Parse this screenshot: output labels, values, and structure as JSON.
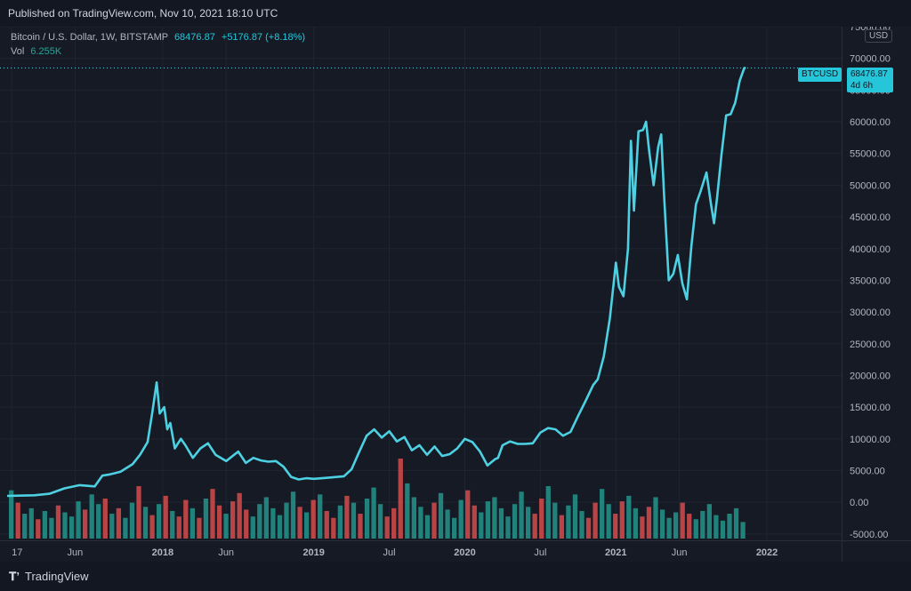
{
  "header": {
    "published": "Published on TradingView.com, Nov 10, 2021 18:10 UTC"
  },
  "legend": {
    "symbol": "Bitcoin / U.S. Dollar, 1W, BITSTAMP",
    "price": "68476.87",
    "change": "+5176.87 (+8.18%)",
    "vol_label": "Vol",
    "vol_value": "6.255K"
  },
  "currency_badge": "USD",
  "last_price_tag": {
    "ticker": "BTCUSD",
    "price": "68476.87",
    "countdown": "4d 6h"
  },
  "footer": {
    "brand": "TradingView"
  },
  "colors": {
    "line": "#4dd0e1",
    "volume_up": "#26a69a",
    "volume_down": "#ef5350",
    "background": "#161a25",
    "grid": "#1f2430"
  },
  "chart_data": {
    "type": "line",
    "title": "Bitcoin / U.S. Dollar, 1W, BITSTAMP",
    "xlabel": "",
    "ylabel": "",
    "ylim": [
      -6000,
      75000
    ],
    "y_ticks": [
      "75000.00",
      "70000.00",
      "65000.00",
      "60000.00",
      "55000.00",
      "50000.00",
      "45000.00",
      "40000.00",
      "35000.00",
      "30000.00",
      "25000.00",
      "20000.00",
      "15000.00",
      "10000.00",
      "5000.00",
      "0.00",
      "-5000.00"
    ],
    "y_tick_values": [
      75000,
      70000,
      65000,
      60000,
      55000,
      50000,
      45000,
      40000,
      35000,
      30000,
      25000,
      20000,
      15000,
      10000,
      5000,
      0,
      -5000
    ],
    "x_ticks": [
      "17",
      "Jun",
      "2018",
      "Jun",
      "2019",
      "Jul",
      "2020",
      "Jul",
      "2021",
      "Jun",
      "2022"
    ],
    "x_tick_values": [
      2017.0,
      2017.42,
      2018.0,
      2018.42,
      2019.0,
      2019.5,
      2020.0,
      2020.5,
      2021.0,
      2021.42,
      2022.0
    ],
    "xlim": [
      2016.97,
      2022.3
    ],
    "series": [
      {
        "name": "BTCUSD",
        "x": [
          2016.97,
          2017.05,
          2017.15,
          2017.25,
          2017.35,
          2017.45,
          2017.55,
          2017.6,
          2017.65,
          2017.72,
          2017.8,
          2017.85,
          2017.9,
          2017.93,
          2017.96,
          2017.98,
          2018.01,
          2018.03,
          2018.05,
          2018.08,
          2018.12,
          2018.15,
          2018.2,
          2018.25,
          2018.3,
          2018.35,
          2018.42,
          2018.5,
          2018.55,
          2018.6,
          2018.65,
          2018.7,
          2018.75,
          2018.8,
          2018.85,
          2018.9,
          2018.95,
          2019.0,
          2019.1,
          2019.2,
          2019.25,
          2019.3,
          2019.35,
          2019.4,
          2019.45,
          2019.5,
          2019.55,
          2019.6,
          2019.65,
          2019.7,
          2019.75,
          2019.8,
          2019.85,
          2019.9,
          2019.95,
          2020.0,
          2020.05,
          2020.1,
          2020.15,
          2020.2,
          2020.22,
          2020.25,
          2020.3,
          2020.35,
          2020.4,
          2020.45,
          2020.5,
          2020.55,
          2020.6,
          2020.65,
          2020.7,
          2020.75,
          2020.8,
          2020.85,
          2020.88,
          2020.92,
          2020.96,
          2021.0,
          2021.02,
          2021.05,
          2021.08,
          2021.1,
          2021.12,
          2021.15,
          2021.18,
          2021.2,
          2021.22,
          2021.25,
          2021.28,
          2021.3,
          2021.32,
          2021.35,
          2021.38,
          2021.41,
          2021.44,
          2021.47,
          2021.5,
          2021.53,
          2021.56,
          2021.6,
          2021.63,
          2021.65,
          2021.67,
          2021.7,
          2021.73,
          2021.76,
          2021.79,
          2021.82,
          2021.85,
          2021.86
        ],
        "values": [
          1000,
          1050,
          1100,
          1350,
          2200,
          2700,
          2500,
          4200,
          4400,
          4800,
          6000,
          7500,
          9500,
          14000,
          18900,
          14000,
          15000,
          11500,
          12500,
          8500,
          10000,
          9000,
          7000,
          8500,
          9300,
          7500,
          6500,
          8000,
          6200,
          7000,
          6600,
          6400,
          6500,
          5600,
          4000,
          3600,
          3800,
          3700,
          3900,
          4100,
          5200,
          7900,
          10500,
          11500,
          10200,
          11200,
          9600,
          10300,
          8200,
          9000,
          7500,
          8800,
          7300,
          7600,
          8500,
          10000,
          9500,
          8000,
          5800,
          6800,
          7000,
          9000,
          9600,
          9200,
          9200,
          9300,
          11000,
          11700,
          11500,
          10500,
          11100,
          13600,
          16000,
          18500,
          19400,
          23000,
          29000,
          37800,
          34000,
          32500,
          40000,
          57000,
          46000,
          58500,
          58700,
          60000,
          55500,
          50000,
          56000,
          58000,
          48000,
          35000,
          36000,
          39000,
          34500,
          32000,
          40500,
          47000,
          49000,
          52000,
          47000,
          44000,
          48000,
          55000,
          61000,
          61200,
          63000,
          66500,
          68476.87,
          68476.87
        ]
      }
    ],
    "volume": {
      "name": "Vol",
      "values": [
        3.5,
        2.6,
        1.8,
        2.2,
        1.4,
        2.0,
        1.5,
        2.4,
        1.9,
        1.6,
        2.7,
        2.1,
        3.2,
        2.5,
        2.9,
        1.8,
        2.2,
        1.5,
        2.6,
        3.8,
        2.3,
        1.7,
        2.5,
        3.1,
        2.0,
        1.6,
        2.8,
        2.2,
        1.5,
        2.9,
        3.6,
        2.4,
        1.8,
        2.7,
        3.3,
        2.1,
        1.6,
        2.5,
        3.0,
        2.2,
        1.7,
        2.6,
        3.4,
        2.3,
        1.9,
        2.8,
        3.2,
        2.0,
        1.5,
        2.4,
        3.1,
        2.6,
        1.8,
        2.9,
        3.7,
        2.5,
        1.6,
        2.2,
        5.8,
        4.0,
        3.0,
        2.3,
        1.7,
        2.6,
        3.3,
        2.1,
        1.5,
        2.8,
        3.5,
        2.4,
        1.9,
        2.7,
        3.0,
        2.2,
        1.6,
        2.5,
        3.4,
        2.3,
        1.8,
        2.9,
        3.8,
        2.6,
        1.7,
        2.4,
        3.2,
        2.0,
        1.5,
        2.6,
        3.6,
        2.5,
        1.8,
        2.7,
        3.1,
        2.2,
        1.6,
        2.3,
        3.0,
        2.1,
        1.5,
        1.9,
        2.6,
        1.8,
        1.4,
        2.0,
        2.5,
        1.7,
        1.3,
        1.8,
        2.2,
        1.2
      ],
      "direction": [
        "up",
        "down",
        "up",
        "up",
        "down",
        "up",
        "up",
        "down",
        "up",
        "up",
        "up",
        "down",
        "up",
        "up",
        "down",
        "up",
        "down",
        "up",
        "up",
        "down",
        "up",
        "down",
        "up",
        "down",
        "up",
        "down",
        "down",
        "up",
        "down",
        "up",
        "down",
        "down",
        "up",
        "down",
        "down",
        "down",
        "up",
        "up",
        "up",
        "up",
        "up",
        "up",
        "up",
        "down",
        "up",
        "down",
        "up",
        "down",
        "down",
        "up",
        "down",
        "up",
        "down",
        "up",
        "up",
        "up",
        "down",
        "down",
        "down",
        "up",
        "up",
        "up",
        "up",
        "down",
        "up",
        "up",
        "up",
        "up",
        "down",
        "down",
        "up",
        "up",
        "up",
        "up",
        "up",
        "up",
        "up",
        "up",
        "down",
        "down",
        "up",
        "up",
        "down",
        "up",
        "up",
        "up",
        "down",
        "down",
        "up",
        "up",
        "down",
        "down",
        "up",
        "up",
        "down",
        "down",
        "up",
        "up",
        "up",
        "up",
        "down",
        "down",
        "up",
        "up",
        "up",
        "up",
        "up",
        "up",
        "up",
        "up"
      ]
    },
    "last_value": 68476.87,
    "grid": true,
    "legend_position": "top-left"
  }
}
